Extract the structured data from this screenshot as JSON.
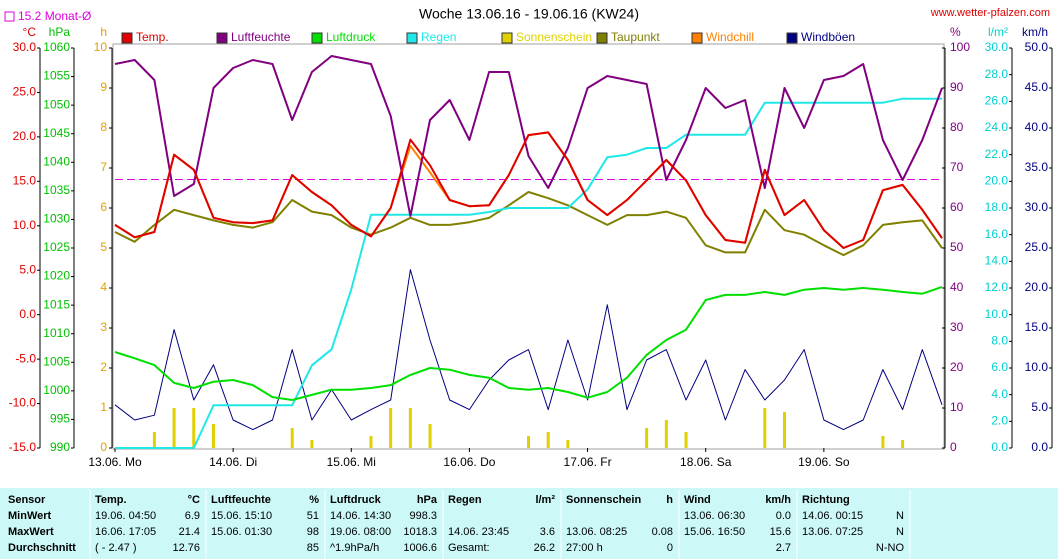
{
  "chart_data": {
    "type": "line",
    "title": "Woche 13.06.16 - 19.06.16 (KW24)",
    "source": "www.wetter-pfalzen.com",
    "monthly_avg": {
      "value": 15.2,
      "label": "15.2 Monat-Ø",
      "color": "#e000e0"
    },
    "xlim": [
      0,
      168
    ],
    "xticks": [
      {
        "value": 0,
        "label": "13.06. Mo"
      },
      {
        "value": 24,
        "label": "14.06. Di"
      },
      {
        "value": 48,
        "label": "15.06. Mi"
      },
      {
        "value": 72,
        "label": "16.06. Do"
      },
      {
        "value": 96,
        "label": "17.06. Fr"
      },
      {
        "value": 120,
        "label": "18.06. Sa"
      },
      {
        "value": 144,
        "label": "19.06. So"
      }
    ],
    "axes": [
      {
        "unit": "°C",
        "color": "#e00000",
        "lim": [
          -15,
          30
        ],
        "ticks": [
          {
            "value": 30,
            "label": "30.0"
          },
          {
            "value": 25,
            "label": "25.0"
          },
          {
            "value": 20,
            "label": "20.0"
          },
          {
            "value": 15,
            "label": "15.0"
          },
          {
            "value": 10,
            "label": "10.0"
          },
          {
            "value": 5,
            "label": "5.0"
          },
          {
            "value": 0,
            "label": "0.0"
          },
          {
            "value": -5,
            "label": "-5.0"
          },
          {
            "value": -10,
            "label": "-10.0"
          },
          {
            "value": -15,
            "label": "-15.0"
          }
        ]
      },
      {
        "unit": "hPa",
        "color": "#00c000",
        "lim": [
          990,
          1060
        ],
        "ticks": [
          1060,
          1055,
          1050,
          1045,
          1040,
          1035,
          1030,
          1025,
          1020,
          1015,
          1010,
          1005,
          1000,
          995,
          990
        ]
      },
      {
        "unit": "h",
        "color": "#e0a000",
        "lim": [
          0,
          10
        ],
        "ticks": [
          10,
          9,
          8,
          7,
          6,
          5,
          4,
          3,
          2,
          1,
          0
        ]
      },
      {
        "unit": "%",
        "color": "#800080",
        "lim": [
          0,
          100
        ],
        "ticks": [
          100,
          90,
          80,
          70,
          60,
          50,
          40,
          30,
          20,
          10,
          0
        ]
      },
      {
        "unit": "l/m²",
        "color": "#00d0d0",
        "lim": [
          0,
          30
        ],
        "ticks": [
          {
            "value": 30,
            "label": "30.0"
          },
          {
            "value": 28,
            "label": "28.0"
          },
          {
            "value": 26,
            "label": "26.0"
          },
          {
            "value": 24,
            "label": "24.0"
          },
          {
            "value": 22,
            "label": "22.0"
          },
          {
            "value": 20,
            "label": "20.0"
          },
          {
            "value": 18,
            "label": "18.0"
          },
          {
            "value": 16,
            "label": "16.0"
          },
          {
            "value": 14,
            "label": "14.0"
          },
          {
            "value": 12,
            "label": "12.0"
          },
          {
            "value": 10,
            "label": "10.0"
          },
          {
            "value": 8,
            "label": "8.0"
          },
          {
            "value": 6,
            "label": "6.0"
          },
          {
            "value": 4,
            "label": "4.0"
          },
          {
            "value": 2,
            "label": "2.0"
          },
          {
            "value": 0,
            "label": "0.0"
          }
        ]
      },
      {
        "unit": "km/h",
        "color": "#000080",
        "lim": [
          0,
          50
        ],
        "ticks": [
          {
            "value": 50,
            "label": "50.0"
          },
          {
            "value": 45,
            "label": "45.0"
          },
          {
            "value": 40,
            "label": "40.0"
          },
          {
            "value": 35,
            "label": "35.0"
          },
          {
            "value": 30,
            "label": "30.0"
          },
          {
            "value": 25,
            "label": "25.0"
          },
          {
            "value": 20,
            "label": "20.0"
          },
          {
            "value": 15,
            "label": "15.0"
          },
          {
            "value": 10,
            "label": "10.0"
          },
          {
            "value": 5,
            "label": "5.0"
          },
          {
            "value": 0,
            "label": "0.0"
          }
        ]
      }
    ],
    "x": [
      0,
      4,
      8,
      12,
      16,
      20,
      24,
      28,
      32,
      36,
      40,
      44,
      48,
      52,
      56,
      60,
      64,
      68,
      72,
      76,
      80,
      84,
      88,
      92,
      96,
      100,
      104,
      108,
      112,
      116,
      120,
      124,
      128,
      132,
      136,
      140,
      144,
      148,
      152,
      156,
      160,
      164,
      168
    ],
    "series": [
      {
        "name": "Temp.",
        "color": "#e00000",
        "type": "line",
        "axis": 0,
        "values": [
          10.1,
          8.7,
          9.3,
          18.0,
          16.3,
          10.9,
          10.4,
          10.3,
          10.6,
          15.7,
          13.8,
          12.3,
          10.1,
          8.8,
          12.0,
          19.7,
          16.8,
          12.9,
          12.2,
          12.3,
          15.7,
          20.2,
          20.5,
          17.4,
          12.9,
          11.2,
          12.9,
          15.1,
          17.4,
          15.1,
          11.2,
          8.4,
          8.1,
          16.3,
          11.2,
          12.9,
          9.5,
          7.5,
          8.4,
          14.0,
          14.6,
          11.8,
          8.6
        ]
      },
      {
        "name": "Luftfeuchte",
        "color": "#800080",
        "type": "line",
        "axis": 3,
        "values": [
          96,
          97,
          92,
          63,
          66,
          90,
          95,
          97,
          96,
          82,
          94,
          98,
          97,
          96,
          83,
          58,
          82,
          87,
          77,
          94,
          94,
          73,
          65,
          75,
          90,
          93,
          92,
          91,
          67,
          77,
          90,
          85,
          87,
          65,
          90,
          80,
          92,
          93,
          96,
          77,
          67,
          77,
          90
        ]
      },
      {
        "name": "Luftdruck",
        "color": "#00e000",
        "type": "line",
        "axis": 1,
        "values": [
          1006.8,
          1005.7,
          1004.5,
          1001.4,
          1000.5,
          1001.6,
          1001.9,
          1001.0,
          998.9,
          998.4,
          999.3,
          1000.2,
          1000.2,
          1000.5,
          1001.0,
          1002.8,
          1004.0,
          1003.7,
          1002.8,
          1002.3,
          1000.5,
          1000.2,
          1000.5,
          999.8,
          998.8,
          999.8,
          1002.3,
          1006.3,
          1008.9,
          1010.7,
          1015.9,
          1016.8,
          1016.8,
          1017.3,
          1016.8,
          1017.7,
          1018.0,
          1017.7,
          1018.0,
          1017.7,
          1017.3,
          1017.0,
          1018.2
        ]
      },
      {
        "name": "Regen",
        "color": "#20e8e8",
        "type": "line",
        "axis": 4,
        "values": [
          0,
          0,
          0,
          0,
          0,
          3.2,
          3.2,
          3.2,
          3.2,
          3.2,
          6.2,
          7.4,
          11.9,
          17.5,
          17.5,
          17.5,
          17.5,
          17.5,
          17.5,
          17.7,
          18.0,
          18.0,
          18.0,
          18.0,
          19.4,
          21.8,
          22.0,
          22.5,
          22.5,
          23.5,
          23.5,
          23.5,
          23.5,
          25.9,
          25.9,
          25.9,
          25.9,
          25.9,
          25.9,
          25.9,
          26.2,
          26.2,
          26.2
        ]
      },
      {
        "name": "Sonnenschein",
        "color": "#e0d000",
        "type": "bar",
        "axis": 2,
        "values": [
          0,
          0,
          0.4,
          1.0,
          1.0,
          0.6,
          0,
          0,
          0,
          0.5,
          0.2,
          0,
          0,
          0.3,
          1.0,
          1.0,
          0.6,
          0,
          0,
          0,
          0,
          0.3,
          0.4,
          0.2,
          0,
          0,
          0,
          0.5,
          0.7,
          0.4,
          0,
          0,
          0,
          1.0,
          0.9,
          0,
          0,
          0,
          0,
          0.3,
          0.2,
          0,
          0
        ]
      },
      {
        "name": "Taupunkt",
        "color": "#808000",
        "type": "line",
        "axis": 0,
        "values": [
          9.3,
          8.2,
          10.1,
          11.8,
          11.2,
          10.6,
          10.1,
          9.8,
          10.4,
          12.9,
          11.6,
          11.2,
          9.8,
          9.0,
          9.8,
          10.9,
          10.1,
          10.1,
          10.4,
          10.9,
          12.3,
          13.8,
          13.1,
          12.3,
          11.2,
          10.1,
          11.2,
          11.2,
          11.6,
          10.9,
          7.8,
          7.0,
          7.0,
          11.8,
          9.5,
          9.0,
          7.8,
          6.7,
          7.8,
          10.1,
          10.4,
          10.6,
          7.5
        ]
      },
      {
        "name": "Windchill",
        "color": "#ff8000",
        "type": "line",
        "axis": 0,
        "values": [
          10.1,
          8.7,
          9.3,
          18.0,
          16.3,
          10.9,
          10.4,
          10.3,
          10.6,
          15.7,
          13.8,
          12.3,
          10.1,
          8.8,
          12.0,
          19.0,
          16.0,
          12.9,
          12.2,
          12.3,
          15.7,
          20.2,
          20.5,
          17.4,
          12.9,
          11.2,
          12.9,
          15.1,
          17.4,
          15.1,
          11.2,
          8.4,
          8.1,
          16.3,
          11.2,
          12.9,
          9.5,
          7.5,
          8.4,
          14.0,
          14.6,
          11.8,
          8.6
        ]
      },
      {
        "name": "Windböen",
        "color": "#000080",
        "type": "line",
        "axis": 5,
        "values": [
          5.4,
          3.5,
          4.1,
          14.8,
          6.0,
          10.4,
          3.5,
          2.3,
          3.5,
          12.3,
          3.5,
          7.3,
          3.5,
          4.8,
          6.0,
          22.3,
          13.5,
          6.0,
          4.8,
          8.5,
          11.0,
          12.3,
          4.8,
          13.5,
          6.0,
          17.9,
          4.8,
          11.0,
          12.3,
          6.0,
          11.0,
          3.5,
          9.8,
          6.0,
          8.5,
          12.3,
          3.5,
          2.3,
          3.5,
          9.8,
          4.8,
          12.3,
          5.4
        ]
      }
    ]
  },
  "table": {
    "label_column": [
      "Sensor",
      "MinWert",
      "MaxWert",
      "Durchschnitt"
    ],
    "groups": [
      {
        "name": "Temp.",
        "unit": "°C",
        "rows": [
          {
            "time": "19.06.  04:50",
            "value": "6.9"
          },
          {
            "time": "16.06.  17:05",
            "value": "21.4"
          },
          {
            "time": "( - 2.47 )",
            "value": "12.76"
          }
        ]
      },
      {
        "name": "Luftfeuchte",
        "unit": "%",
        "rows": [
          {
            "time": "15.06.  15:10",
            "value": "51"
          },
          {
            "time": "15.06.  01:30",
            "value": "98"
          },
          {
            "value": "85"
          }
        ]
      },
      {
        "name": "Luftdruck",
        "unit": "hPa",
        "rows": [
          {
            "time": "14.06.  14:30",
            "value": "998.3"
          },
          {
            "time": "19.06.  08:00",
            "value": "1018.3"
          },
          {
            "time": "^1.9hPa/h",
            "value": "1006.6"
          }
        ]
      },
      {
        "name": "Regen",
        "unit": "l/m²",
        "rows": [
          {},
          {
            "time": "14.06.  23:45",
            "value": "3.6"
          },
          {
            "time": "Gesamt:",
            "value": "26.2"
          }
        ]
      },
      {
        "name": "Sonnenschein",
        "unit": "h",
        "rows": [
          {},
          {
            "time": "13.06.  08:25",
            "value": "0.08"
          },
          {
            "time": "27:00 h",
            "value": "0"
          }
        ]
      },
      {
        "name": "Wind",
        "unit": "km/h",
        "rows": [
          {
            "time": "13.06.  06:30",
            "value": "0.0"
          },
          {
            "time": "15.06.  16:50",
            "value": "15.6"
          },
          {
            "value": "2.7"
          }
        ]
      },
      {
        "name": "Richtung",
        "rows": [
          {
            "time": "14.06.  00:15",
            "value": "N"
          },
          {
            "time": "13.06.  07:25",
            "value": "N"
          },
          {
            "value": "N-NO"
          }
        ]
      }
    ]
  }
}
